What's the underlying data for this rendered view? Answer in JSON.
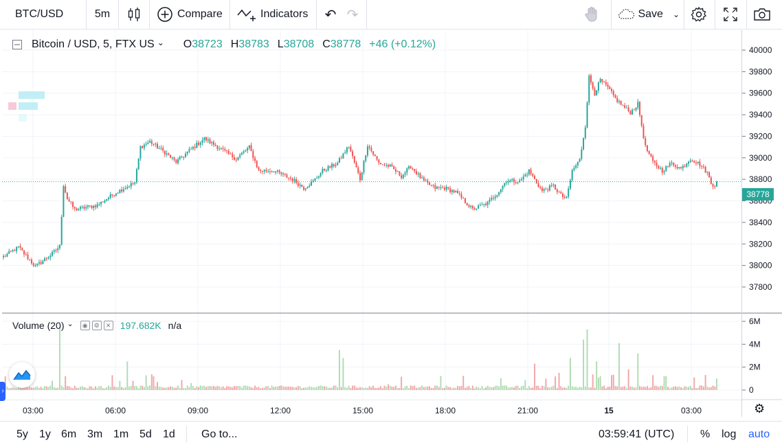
{
  "toolbar": {
    "symbol": "BTC/USD",
    "interval": "5m",
    "compare_label": "Compare",
    "indicators_label": "Indicators",
    "save_label": "Save"
  },
  "legend": {
    "title": "Bitcoin / USD, 5, FTX US",
    "open_label": "O",
    "open": "38723",
    "high_label": "H",
    "high": "38783",
    "low_label": "L",
    "low": "38708",
    "close_label": "C",
    "close": "38778",
    "change": "+46 (+0.12%)"
  },
  "volume_legend": {
    "title": "Volume (20)",
    "value": "197.682K",
    "ma": "n/a"
  },
  "last_price_tag": "38778",
  "bottombar": {
    "ranges": [
      "5y",
      "1y",
      "6m",
      "3m",
      "1m",
      "5d",
      "1d"
    ],
    "goto_label": "Go to...",
    "clock": "03:59:41 (UTC)",
    "percent_label": "%",
    "log_label": "log",
    "auto_label": "auto"
  },
  "colors": {
    "up": "#26a69a",
    "down": "#ef5350",
    "accent": "#2962ff"
  },
  "chart_data": {
    "type": "candlestick",
    "price_axis": {
      "ticks": [
        "40000",
        "39800",
        "39600",
        "39400",
        "39200",
        "39000",
        "38800",
        "38600",
        "38400",
        "38200",
        "38000",
        "37800"
      ],
      "range": [
        37800,
        40000
      ]
    },
    "volume_axis": {
      "ticks": [
        "6M",
        "4M",
        "2M",
        "0"
      ],
      "range": [
        0,
        6000000
      ]
    },
    "time_axis": [
      "03:00",
      "06:00",
      "09:00",
      "12:00",
      "15:00",
      "18:00",
      "21:00",
      "15",
      "03:00"
    ],
    "last_price": 38778,
    "anchors": [
      [
        0,
        38080
      ],
      [
        8,
        38170
      ],
      [
        17,
        37990
      ],
      [
        26,
        38110
      ],
      [
        30,
        38180
      ],
      [
        32,
        38750
      ],
      [
        34,
        38620
      ],
      [
        38,
        38520
      ],
      [
        50,
        38560
      ],
      [
        60,
        38680
      ],
      [
        70,
        38770
      ],
      [
        73,
        39100
      ],
      [
        78,
        39150
      ],
      [
        86,
        39050
      ],
      [
        92,
        38960
      ],
      [
        100,
        39080
      ],
      [
        107,
        39180
      ],
      [
        116,
        39080
      ],
      [
        124,
        38990
      ],
      [
        131,
        39100
      ],
      [
        136,
        38880
      ],
      [
        144,
        38880
      ],
      [
        154,
        38800
      ],
      [
        160,
        38720
      ],
      [
        165,
        38780
      ],
      [
        170,
        38880
      ],
      [
        178,
        38950
      ],
      [
        184,
        39110
      ],
      [
        190,
        38800
      ],
      [
        194,
        39120
      ],
      [
        200,
        38950
      ],
      [
        206,
        38920
      ],
      [
        212,
        38830
      ],
      [
        217,
        38920
      ],
      [
        224,
        38780
      ],
      [
        230,
        38720
      ],
      [
        235,
        38720
      ],
      [
        241,
        38680
      ],
      [
        250,
        38520
      ],
      [
        258,
        38580
      ],
      [
        264,
        38690
      ],
      [
        268,
        38790
      ],
      [
        275,
        38780
      ],
      [
        280,
        38880
      ],
      [
        287,
        38690
      ],
      [
        293,
        38740
      ],
      [
        297,
        38650
      ],
      [
        300,
        38620
      ],
      [
        303,
        38880
      ],
      [
        307,
        38980
      ],
      [
        310,
        39300
      ],
      [
        312,
        39750
      ],
      [
        315,
        39600
      ],
      [
        318,
        39720
      ],
      [
        322,
        39650
      ],
      [
        326,
        39550
      ],
      [
        330,
        39480
      ],
      [
        334,
        39420
      ],
      [
        338,
        39500
      ],
      [
        342,
        39100
      ],
      [
        346,
        38960
      ],
      [
        351,
        38880
      ],
      [
        356,
        38950
      ],
      [
        361,
        38900
      ],
      [
        366,
        38990
      ],
      [
        371,
        38940
      ],
      [
        375,
        38860
      ],
      [
        377,
        38760
      ],
      [
        380,
        38740
      ]
    ],
    "volume_profile": [
      [
        0,
        0.35
      ],
      [
        12,
        0.9
      ],
      [
        30,
        5.5
      ],
      [
        33,
        1.2
      ],
      [
        62,
        0.8
      ],
      [
        66,
        2.5
      ],
      [
        100,
        0.6
      ],
      [
        179,
        3.5
      ],
      [
        181,
        2.8
      ],
      [
        205,
        0.5
      ],
      [
        245,
        0.9
      ],
      [
        265,
        0.8
      ],
      [
        283,
        2.3
      ],
      [
        296,
        1.5
      ],
      [
        302,
        2.8
      ],
      [
        309,
        4.4
      ],
      [
        311,
        5.3
      ],
      [
        316,
        2.5
      ],
      [
        324,
        1.3
      ],
      [
        328,
        4.1
      ],
      [
        333,
        1.8
      ],
      [
        338,
        3.2
      ],
      [
        346,
        1.3
      ],
      [
        353,
        1.2
      ],
      [
        368,
        1.1
      ],
      [
        380,
        1.0
      ]
    ],
    "candle_count": 381
  }
}
